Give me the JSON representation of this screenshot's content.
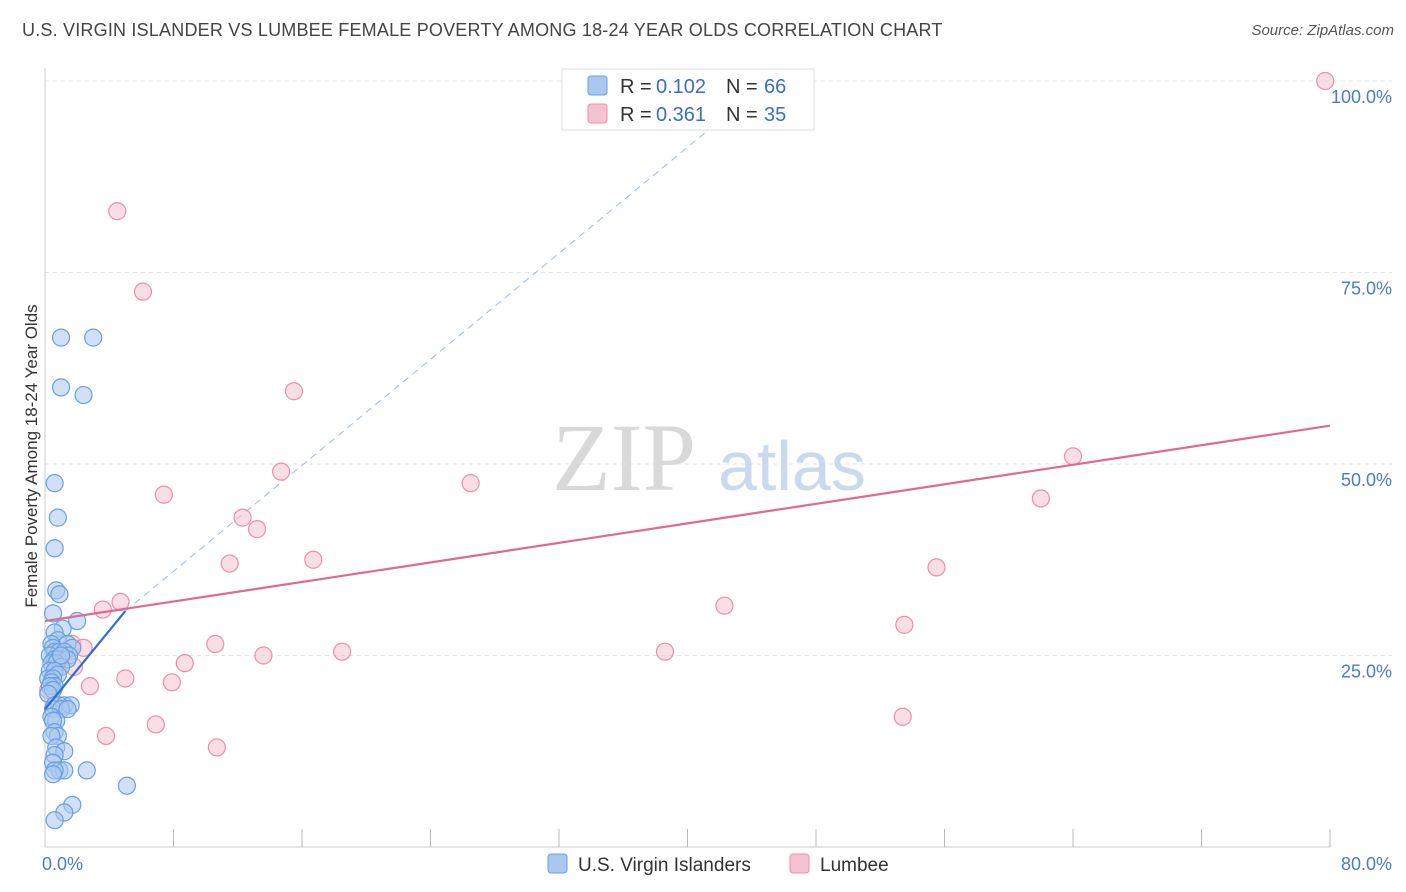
{
  "header": {
    "title": "U.S. VIRGIN ISLANDER VS LUMBEE FEMALE POVERTY AMONG 18-24 YEAR OLDS CORRELATION CHART",
    "source": "Source: ZipAtlas.com"
  },
  "watermark": {
    "zip": "ZIP",
    "atlas": "atlas"
  },
  "colors": {
    "blue_fill": "#a9c8f0",
    "blue_stroke": "#6a9fe0",
    "blue_line": "#2f6fd3",
    "pink_fill": "#f6c2d1",
    "pink_stroke": "#ea8fab",
    "pink_line": "#e06892",
    "grid": "#e3e3e3",
    "tick_text": "#4a7cc7"
  },
  "legend": {
    "rows": [
      {
        "r_label": "R = ",
        "r_value": "0.102",
        "n_label": "N = ",
        "n_value": "66"
      },
      {
        "r_label": "R = ",
        "r_value": "0.361",
        "n_label": "N = ",
        "n_value": "35"
      }
    ]
  },
  "chart_data": {
    "type": "scatter",
    "title": "U.S. VIRGIN ISLANDER VS LUMBEE FEMALE POVERTY AMONG 18-24 YEAR OLDS CORRELATION CHART",
    "xlabel": "",
    "ylabel": "Female Poverty Among 18-24 Year Olds",
    "xlim": [
      0,
      80
    ],
    "ylim": [
      0,
      100
    ],
    "x_tick_labels": [
      "0.0%",
      "80.0%"
    ],
    "y_ticks": [
      25,
      50,
      75,
      100
    ],
    "y_tick_labels": [
      "25.0%",
      "50.0%",
      "75.0%",
      "100.0%"
    ],
    "series": [
      {
        "name": "U.S. Virgin Islanders",
        "r": 0.102,
        "n": 66,
        "trend": {
          "x": [
            0,
            5
          ],
          "y": [
            18.0,
            30.8
          ]
        },
        "trend_extended": {
          "x": [
            5,
            45
          ],
          "y": [
            30.8,
            100
          ]
        },
        "points": [
          [
            1.0,
            66.5
          ],
          [
            3.0,
            66.5
          ],
          [
            1.0,
            60.0
          ],
          [
            2.4,
            59.0
          ],
          [
            0.6,
            47.5
          ],
          [
            0.8,
            43.0
          ],
          [
            0.6,
            39.0
          ],
          [
            0.7,
            33.5
          ],
          [
            0.9,
            33.0
          ],
          [
            0.5,
            30.5
          ],
          [
            2.0,
            29.5
          ],
          [
            1.1,
            28.5
          ],
          [
            0.6,
            28.0
          ],
          [
            0.8,
            27.0
          ],
          [
            0.4,
            26.5
          ],
          [
            1.4,
            26.5
          ],
          [
            0.5,
            26.0
          ],
          [
            1.7,
            26.0
          ],
          [
            0.6,
            25.5
          ],
          [
            0.9,
            25.5
          ],
          [
            1.2,
            25.5
          ],
          [
            1.5,
            25.0
          ],
          [
            0.3,
            25.0
          ],
          [
            0.6,
            24.5
          ],
          [
            0.8,
            24.5
          ],
          [
            1.4,
            24.5
          ],
          [
            0.4,
            24.0
          ],
          [
            0.7,
            24.0
          ],
          [
            1.0,
            23.5
          ],
          [
            0.3,
            23.0
          ],
          [
            0.6,
            23.0
          ],
          [
            0.8,
            22.5
          ],
          [
            0.2,
            22.0
          ],
          [
            0.5,
            22.0
          ],
          [
            0.4,
            21.5
          ],
          [
            0.6,
            21.0
          ],
          [
            0.3,
            21.0
          ],
          [
            0.5,
            20.5
          ],
          [
            0.2,
            20.0
          ],
          [
            0.6,
            18.5
          ],
          [
            0.9,
            18.5
          ],
          [
            1.2,
            18.5
          ],
          [
            1.6,
            18.5
          ],
          [
            0.5,
            18.0
          ],
          [
            1.0,
            18.0
          ],
          [
            1.4,
            18.0
          ],
          [
            0.4,
            17.0
          ],
          [
            0.7,
            16.5
          ],
          [
            0.5,
            16.5
          ],
          [
            0.6,
            15.0
          ],
          [
            0.8,
            14.5
          ],
          [
            0.4,
            14.5
          ],
          [
            0.7,
            13.0
          ],
          [
            1.2,
            12.5
          ],
          [
            0.6,
            12.0
          ],
          [
            0.5,
            11.0
          ],
          [
            0.9,
            10.0
          ],
          [
            1.2,
            10.0
          ],
          [
            2.6,
            10.0
          ],
          [
            0.6,
            10.0
          ],
          [
            5.1,
            8.0
          ],
          [
            1.7,
            5.5
          ],
          [
            1.2,
            4.5
          ],
          [
            0.6,
            3.5
          ],
          [
            0.5,
            9.5
          ],
          [
            1.0,
            25.0
          ]
        ]
      },
      {
        "name": "Lumbee",
        "r": 0.361,
        "n": 35,
        "trend": {
          "x": [
            0,
            80
          ],
          "y": [
            29.5,
            55.0
          ]
        },
        "points": [
          [
            79.7,
            100.0
          ],
          [
            4.5,
            83.0
          ],
          [
            6.1,
            72.5
          ],
          [
            15.5,
            59.5
          ],
          [
            64.0,
            51.0
          ],
          [
            14.7,
            49.0
          ],
          [
            26.5,
            47.5
          ],
          [
            7.4,
            46.0
          ],
          [
            62.0,
            45.5
          ],
          [
            12.3,
            43.0
          ],
          [
            13.2,
            41.5
          ],
          [
            11.5,
            37.0
          ],
          [
            16.7,
            37.5
          ],
          [
            55.5,
            36.5
          ],
          [
            4.7,
            32.0
          ],
          [
            3.6,
            31.0
          ],
          [
            42.3,
            31.5
          ],
          [
            53.5,
            29.0
          ],
          [
            1.7,
            26.5
          ],
          [
            2.4,
            26.0
          ],
          [
            10.6,
            26.5
          ],
          [
            38.6,
            25.5
          ],
          [
            18.5,
            25.5
          ],
          [
            13.6,
            25.0
          ],
          [
            8.7,
            24.0
          ],
          [
            1.8,
            23.5
          ],
          [
            5.0,
            22.0
          ],
          [
            7.9,
            21.5
          ],
          [
            0.6,
            21.0
          ],
          [
            2.8,
            21.0
          ],
          [
            0.2,
            20.5
          ],
          [
            6.9,
            16.0
          ],
          [
            53.4,
            17.0
          ],
          [
            3.8,
            14.5
          ],
          [
            10.7,
            13.0
          ]
        ]
      }
    ]
  },
  "bottom_legend": {
    "items": [
      {
        "label": "U.S. Virgin Islanders"
      },
      {
        "label": "Lumbee"
      }
    ]
  }
}
